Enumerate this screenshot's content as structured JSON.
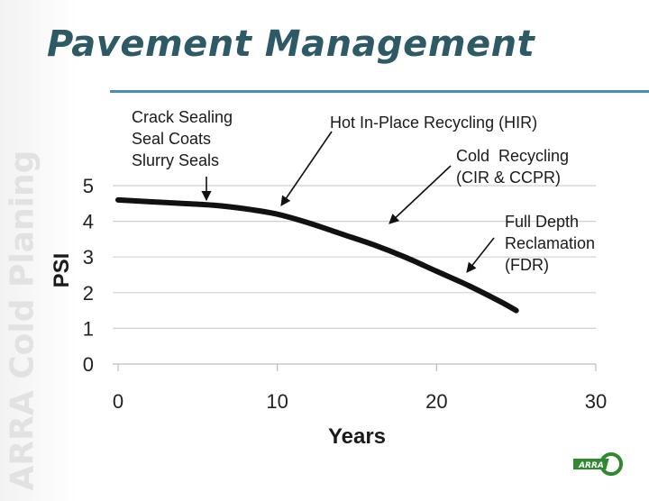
{
  "slide": {
    "title": "Pavement Management",
    "watermark": "ARRA Cold Planing",
    "logo_text": "ARRA"
  },
  "annotations": [
    {
      "id": "preservation",
      "lines": [
        "Crack Sealing",
        "Seal Coats",
        "Slurry Seals"
      ]
    },
    {
      "id": "hir",
      "lines": [
        "Hot In-Place Recycling (HIR)"
      ]
    },
    {
      "id": "cold",
      "lines": [
        "Cold  Recycling",
        "(CIR & CCPR)"
      ]
    },
    {
      "id": "fdr",
      "lines": [
        "Full Depth",
        "Reclamation",
        "(FDR)"
      ]
    }
  ],
  "chart_data": {
    "type": "line",
    "title": "",
    "xlabel": "Years",
    "ylabel": "PSI",
    "xlim": [
      0,
      30
    ],
    "ylim": [
      0,
      5
    ],
    "xticks": [
      0,
      10,
      20,
      30
    ],
    "yticks": [
      0,
      1,
      2,
      3,
      4,
      5
    ],
    "grid": "horizontal",
    "series": [
      {
        "color": "#111111",
        "x": [
          0,
          2,
          4,
          6,
          8,
          10,
          12,
          14,
          16,
          18,
          20,
          22,
          24,
          25
        ],
        "y": [
          4.6,
          4.55,
          4.5,
          4.45,
          4.35,
          4.2,
          3.95,
          3.65,
          3.35,
          3.0,
          2.6,
          2.2,
          1.75,
          1.5
        ]
      }
    ]
  },
  "colors": {
    "title": "#2e5a66",
    "rule": "#4a8fb5",
    "grid": "#d0d0d0",
    "curve": "#111111",
    "logo_green": "#2f8a2f"
  }
}
